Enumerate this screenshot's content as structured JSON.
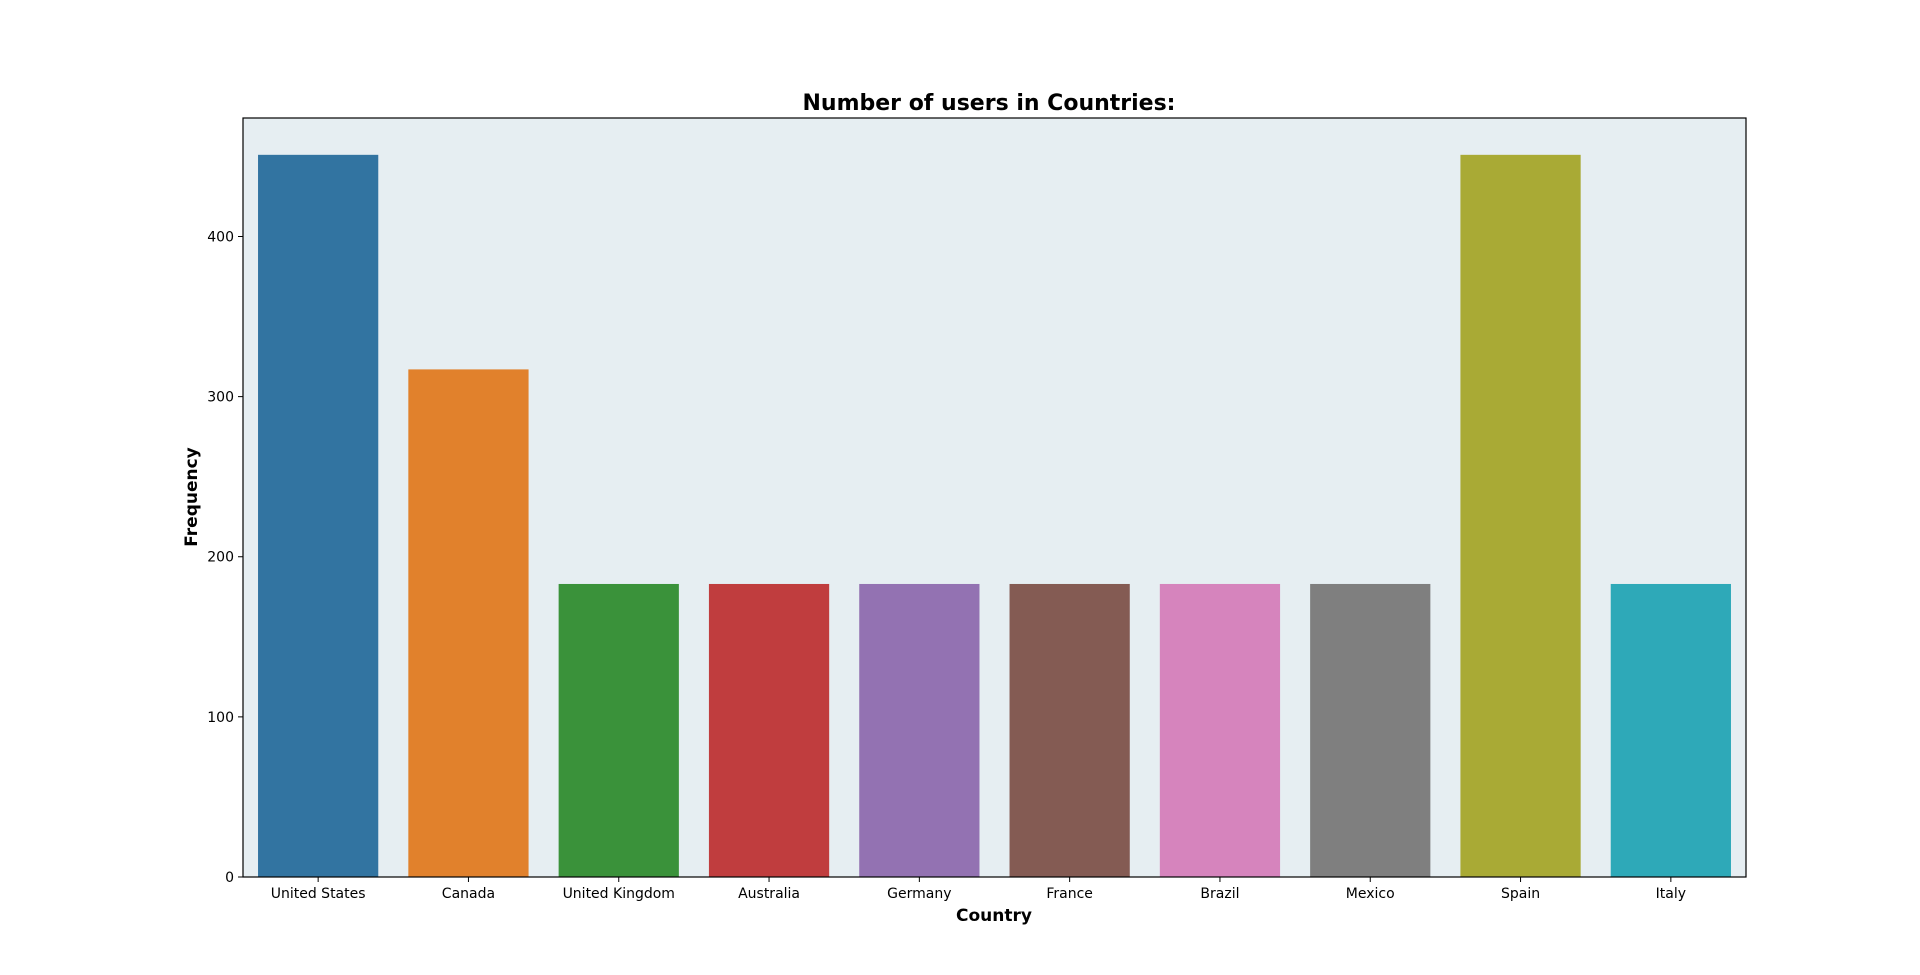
{
  "chart_data": {
    "type": "bar",
    "title": "Number of users in Countries:",
    "xlabel": "Country",
    "ylabel": "Frequency",
    "categories": [
      "United States",
      "Canada",
      "United Kingdom",
      "Australia",
      "Germany",
      "France",
      "Brazil",
      "Mexico",
      "Spain",
      "Italy"
    ],
    "values": [
      451,
      317,
      183,
      183,
      183,
      183,
      183,
      183,
      451,
      183
    ],
    "colors": [
      "#3274a1",
      "#e1812c",
      "#3a923a",
      "#c03d3e",
      "#9372b2",
      "#845b53",
      "#d684bd",
      "#7f7f7f",
      "#a9aa35",
      "#2ea9b8"
    ],
    "yticks": [
      0,
      100,
      200,
      300,
      400
    ],
    "ylim": [
      0,
      474
    ],
    "plot_background": "#e6eef2",
    "grid": false,
    "legend": false
  }
}
